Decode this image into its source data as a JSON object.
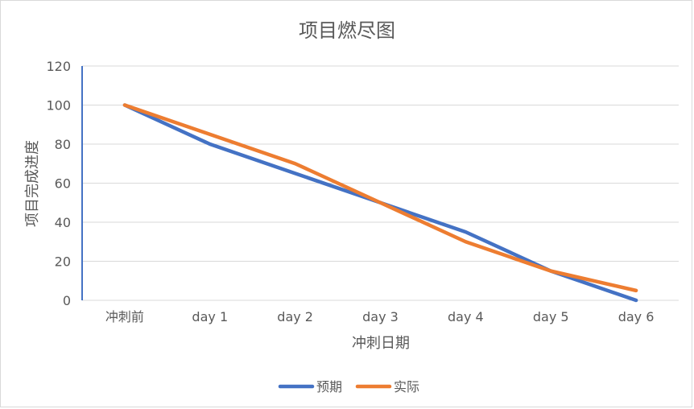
{
  "chart_data": {
    "type": "line",
    "title": "项目燃尽图",
    "xlabel": "冲刺日期",
    "ylabel": "项目完成进度",
    "categories": [
      "冲刺前",
      "day 1",
      "day 2",
      "day 3",
      "day 4",
      "day 5",
      "day 6"
    ],
    "ylim": [
      0,
      120
    ],
    "yticks": [
      0,
      20,
      40,
      60,
      80,
      100,
      120
    ],
    "grid": true,
    "legend_position": "bottom",
    "series": [
      {
        "name": "预期",
        "color": "#4472c4",
        "values": [
          100,
          80,
          65,
          50,
          35,
          15,
          0
        ]
      },
      {
        "name": "实际",
        "color": "#ed7d31",
        "values": [
          100,
          85,
          70,
          50,
          30,
          15,
          5
        ]
      }
    ]
  }
}
